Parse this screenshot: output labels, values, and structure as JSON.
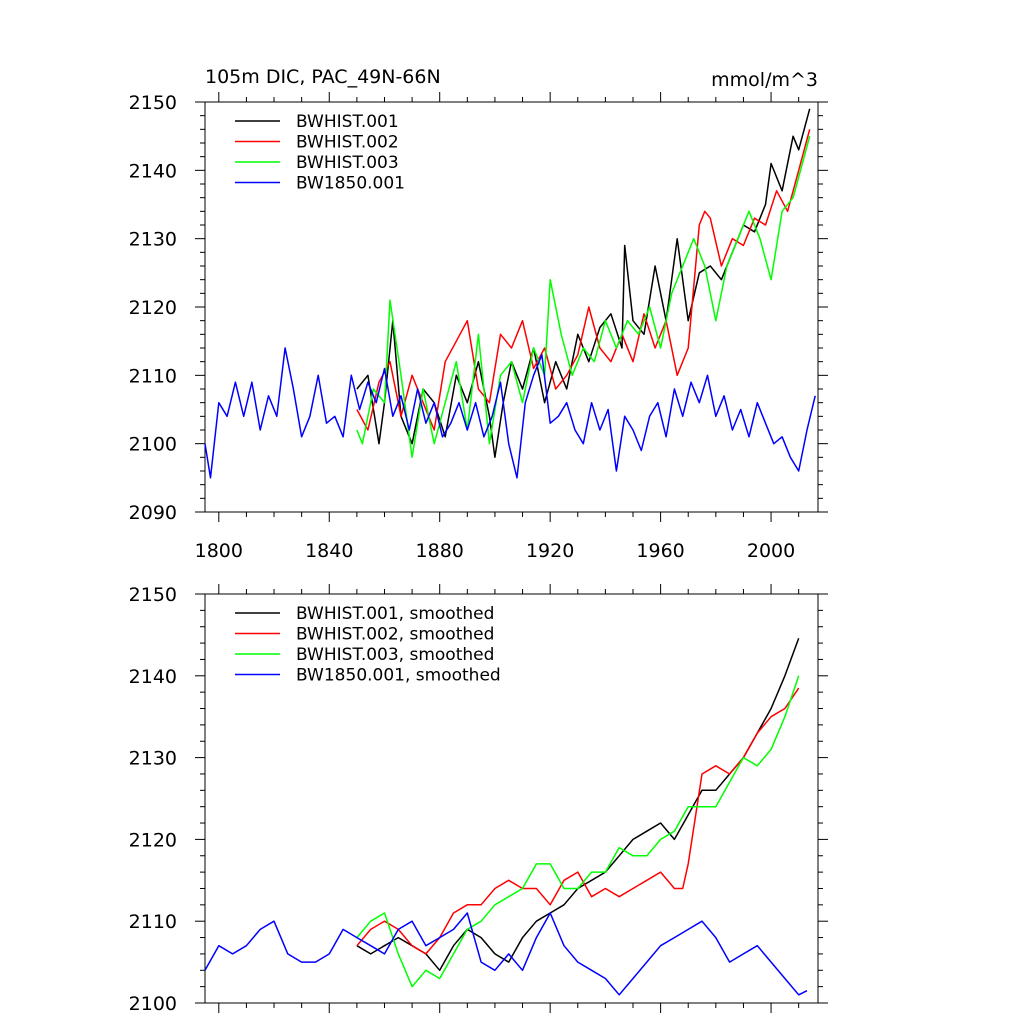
{
  "chart_data": [
    {
      "type": "line",
      "title": "105m DIC, PAC_49N-66N",
      "units": "mmol/m^3",
      "xlabel": "",
      "ylabel": "",
      "xlim": [
        1795,
        2017
      ],
      "ylim": [
        2090,
        2150
      ],
      "xticks": [
        1800,
        1840,
        1880,
        1920,
        1960,
        2000
      ],
      "yticks": [
        2090,
        2100,
        2110,
        2120,
        2130,
        2140,
        2150
      ],
      "legend_position": "top-left",
      "grid": false,
      "series": [
        {
          "name": "BWHIST.001",
          "color": "#000000",
          "x": [
            1850,
            1854,
            1858,
            1860,
            1863,
            1866,
            1870,
            1874,
            1878,
            1882,
            1886,
            1890,
            1894,
            1898,
            1900,
            1903,
            1906,
            1910,
            1914,
            1918,
            1922,
            1926,
            1930,
            1934,
            1938,
            1942,
            1946,
            1947,
            1950,
            1954,
            1958,
            1962,
            1966,
            1970,
            1974,
            1978,
            1982,
            1986,
            1990,
            1994,
            1998,
            2000,
            2004,
            2008,
            2010,
            2014
          ],
          "y": [
            2108,
            2110,
            2100,
            2106,
            2118,
            2104,
            2100,
            2108,
            2106,
            2101,
            2110,
            2106,
            2112,
            2104,
            2098,
            2106,
            2112,
            2108,
            2114,
            2106,
            2112,
            2108,
            2116,
            2112,
            2117,
            2119,
            2114,
            2129,
            2118,
            2116,
            2126,
            2118,
            2130,
            2118,
            2125,
            2126,
            2124,
            2128,
            2132,
            2131,
            2135,
            2141,
            2137,
            2145,
            2143,
            2149
          ]
        },
        {
          "name": "BWHIST.002",
          "color": "#ff0000",
          "x": [
            1850,
            1854,
            1858,
            1862,
            1866,
            1870,
            1874,
            1878,
            1882,
            1886,
            1890,
            1894,
            1898,
            1902,
            1906,
            1910,
            1914,
            1918,
            1922,
            1926,
            1930,
            1934,
            1938,
            1942,
            1946,
            1950,
            1954,
            1958,
            1962,
            1966,
            1970,
            1974,
            1976,
            1978,
            1982,
            1986,
            1990,
            1994,
            1998,
            2002,
            2006,
            2010,
            2014
          ],
          "y": [
            2105,
            2102,
            2109,
            2112,
            2104,
            2110,
            2106,
            2102,
            2112,
            2115,
            2118,
            2108,
            2106,
            2116,
            2114,
            2118,
            2111,
            2114,
            2108,
            2110,
            2113,
            2120,
            2114,
            2112,
            2116,
            2112,
            2119,
            2114,
            2118,
            2110,
            2114,
            2132,
            2134,
            2133,
            2126,
            2130,
            2129,
            2133,
            2132,
            2137,
            2134,
            2140,
            2146
          ]
        },
        {
          "name": "BWHIST.003",
          "color": "#00ff00",
          "x": [
            1850,
            1852,
            1856,
            1860,
            1862,
            1866,
            1870,
            1874,
            1878,
            1882,
            1886,
            1890,
            1894,
            1898,
            1902,
            1906,
            1910,
            1914,
            1918,
            1920,
            1924,
            1928,
            1932,
            1936,
            1940,
            1944,
            1948,
            1952,
            1956,
            1960,
            1964,
            1968,
            1972,
            1976,
            1980,
            1984,
            1988,
            1992,
            1996,
            2000,
            2004,
            2008,
            2012,
            2014
          ],
          "y": [
            2102,
            2100,
            2108,
            2106,
            2121,
            2110,
            2098,
            2108,
            2100,
            2106,
            2112,
            2102,
            2116,
            2100,
            2110,
            2112,
            2106,
            2114,
            2110,
            2124,
            2116,
            2110,
            2114,
            2112,
            2118,
            2114,
            2118,
            2116,
            2120,
            2114,
            2122,
            2126,
            2130,
            2126,
            2118,
            2126,
            2130,
            2134,
            2130,
            2124,
            2134,
            2136,
            2142,
            2145
          ]
        },
        {
          "name": "BW1850.001",
          "color": "#0000ff",
          "x": [
            1795,
            1797,
            1800,
            1803,
            1806,
            1809,
            1812,
            1815,
            1818,
            1821,
            1824,
            1827,
            1830,
            1833,
            1836,
            1839,
            1842,
            1845,
            1848,
            1851,
            1854,
            1857,
            1860,
            1863,
            1866,
            1869,
            1872,
            1875,
            1878,
            1881,
            1884,
            1887,
            1890,
            1893,
            1896,
            1899,
            1902,
            1905,
            1908,
            1911,
            1914,
            1917,
            1920,
            1923,
            1926,
            1929,
            1932,
            1935,
            1938,
            1941,
            1944,
            1947,
            1950,
            1953,
            1956,
            1959,
            1962,
            1965,
            1968,
            1971,
            1974,
            1977,
            1980,
            1983,
            1986,
            1989,
            1992,
            1995,
            1998,
            2001,
            2004,
            2007,
            2010,
            2013,
            2016
          ],
          "y": [
            2100,
            2095,
            2106,
            2104,
            2109,
            2104,
            2109,
            2102,
            2107,
            2104,
            2114,
            2108,
            2101,
            2104,
            2110,
            2103,
            2104,
            2101,
            2110,
            2105,
            2109,
            2106,
            2111,
            2104,
            2107,
            2102,
            2108,
            2103,
            2106,
            2101,
            2103,
            2106,
            2102,
            2106,
            2101,
            2104,
            2109,
            2100,
            2095,
            2106,
            2110,
            2113,
            2103,
            2104,
            2106,
            2102,
            2100,
            2106,
            2102,
            2105,
            2096,
            2104,
            2102,
            2099,
            2104,
            2106,
            2101,
            2108,
            2104,
            2109,
            2106,
            2110,
            2104,
            2107,
            2102,
            2105,
            2101,
            2106,
            2103,
            2100,
            2101,
            2098,
            2096,
            2102,
            2107
          ]
        }
      ]
    },
    {
      "type": "line",
      "title": "",
      "xlabel": "",
      "ylabel": "",
      "xlim": [
        1795,
        2017
      ],
      "ylim": [
        2100,
        2150
      ],
      "xticks": [
        1800,
        1840,
        1880,
        1920,
        1960,
        2000
      ],
      "yticks": [
        2100,
        2110,
        2120,
        2130,
        2140,
        2150
      ],
      "legend_position": "top-left",
      "grid": false,
      "series": [
        {
          "name": "BWHIST.001, smoothed",
          "color": "#000000",
          "x": [
            1850,
            1855,
            1860,
            1865,
            1870,
            1875,
            1880,
            1885,
            1890,
            1895,
            1900,
            1905,
            1910,
            1915,
            1920,
            1925,
            1930,
            1935,
            1940,
            1945,
            1950,
            1955,
            1960,
            1965,
            1970,
            1975,
            1980,
            1985,
            1990,
            1995,
            2000,
            2005,
            2010
          ],
          "y": [
            2107,
            2106,
            2107,
            2108,
            2107,
            2106,
            2104,
            2107,
            2109,
            2108,
            2106,
            2105,
            2108,
            2110,
            2111,
            2112,
            2114,
            2115,
            2116,
            2118,
            2120,
            2121,
            2122,
            2120,
            2123,
            2126,
            2126,
            2128,
            2130,
            2133,
            2136,
            2140,
            2144.6
          ]
        },
        {
          "name": "BWHIST.002, smoothed",
          "color": "#ff0000",
          "x": [
            1850,
            1855,
            1860,
            1865,
            1870,
            1875,
            1880,
            1885,
            1890,
            1895,
            1900,
            1905,
            1910,
            1915,
            1920,
            1925,
            1930,
            1935,
            1940,
            1945,
            1950,
            1955,
            1960,
            1965,
            1968,
            1970,
            1975,
            1980,
            1985,
            1990,
            1995,
            2000,
            2005,
            2010
          ],
          "y": [
            2107,
            2109,
            2110,
            2109,
            2107,
            2106,
            2108,
            2111,
            2112,
            2112,
            2114,
            2115,
            2114,
            2114,
            2112,
            2115,
            2116,
            2113,
            2114,
            2113,
            2114,
            2115,
            2116,
            2114,
            2114,
            2117,
            2128,
            2129,
            2128,
            2130,
            2133,
            2135,
            2136,
            2138.5
          ]
        },
        {
          "name": "BWHIST.003, smoothed",
          "color": "#00ff00",
          "x": [
            1850,
            1855,
            1860,
            1865,
            1870,
            1875,
            1880,
            1885,
            1890,
            1895,
            1900,
            1905,
            1910,
            1915,
            1920,
            1925,
            1930,
            1935,
            1940,
            1945,
            1950,
            1955,
            1960,
            1965,
            1970,
            1975,
            1980,
            1985,
            1990,
            1995,
            2000,
            2005,
            2010
          ],
          "y": [
            2108,
            2110,
            2111,
            2106,
            2102,
            2104,
            2103,
            2106,
            2109,
            2110,
            2112,
            2113,
            2114,
            2117,
            2117,
            2114,
            2114,
            2116,
            2116,
            2119,
            2118,
            2118,
            2120,
            2121,
            2124,
            2124,
            2124,
            2127,
            2130,
            2129,
            2131,
            2135,
            2140
          ]
        },
        {
          "name": "BW1850.001, smoothed",
          "color": "#0000ff",
          "x": [
            1795,
            1800,
            1805,
            1810,
            1815,
            1820,
            1825,
            1830,
            1835,
            1840,
            1845,
            1850,
            1855,
            1860,
            1865,
            1870,
            1875,
            1880,
            1885,
            1890,
            1895,
            1900,
            1905,
            1910,
            1915,
            1920,
            1925,
            1930,
            1935,
            1940,
            1945,
            1950,
            1955,
            1960,
            1965,
            1970,
            1975,
            1980,
            1985,
            1990,
            1995,
            2000,
            2005,
            2010,
            2013
          ],
          "y": [
            2104,
            2107,
            2106,
            2107,
            2109,
            2110,
            2106,
            2105,
            2105,
            2106,
            2109,
            2108,
            2107,
            2106,
            2109,
            2110,
            2107,
            2108,
            2109,
            2111,
            2105,
            2104,
            2106,
            2104,
            2108,
            2111,
            2107,
            2105,
            2104,
            2103,
            2101,
            2103,
            2105,
            2107,
            2108,
            2109,
            2110,
            2108,
            2105,
            2106,
            2107,
            2105,
            2103,
            2101,
            2101.5
          ]
        }
      ]
    }
  ]
}
